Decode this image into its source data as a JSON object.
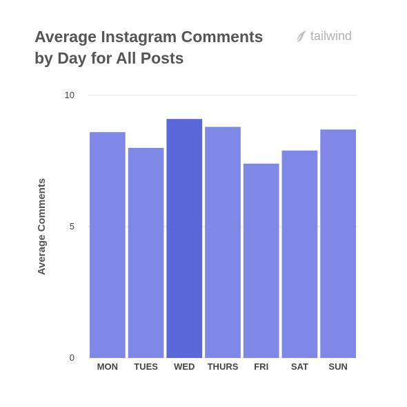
{
  "chart_data": {
    "type": "bar",
    "title": "Average Instagram Comments by Day for All Posts",
    "ylabel": "Average Comments",
    "xlabel": "",
    "categories": [
      "MON",
      "TUES",
      "WED",
      "THURS",
      "FRI",
      "SAT",
      "SUN"
    ],
    "values": [
      8.6,
      8.0,
      9.1,
      8.8,
      7.4,
      7.9,
      8.7
    ],
    "highlight": "WED",
    "ylim": [
      0,
      10
    ],
    "yticks": [
      "0",
      "5",
      "10"
    ],
    "grid": true,
    "colors": {
      "bar": "#7f88e6",
      "highlight": "#5a67d8",
      "grid": "#e3e3e3"
    }
  },
  "brand": {
    "name": "tailwind",
    "icon": "feather-icon",
    "color": "#b3b3b3"
  }
}
